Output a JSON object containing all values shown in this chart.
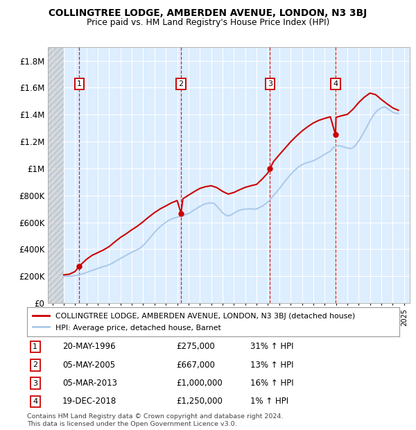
{
  "title": "COLLINGTREE LODGE, AMBERDEN AVENUE, LONDON, N3 3BJ",
  "subtitle": "Price paid vs. HM Land Registry's House Price Index (HPI)",
  "ylabel_ticks": [
    "£0",
    "£200K",
    "£400K",
    "£600K",
    "£800K",
    "£1M",
    "£1.2M",
    "£1.4M",
    "£1.6M",
    "£1.8M"
  ],
  "ytick_values": [
    0,
    200000,
    400000,
    600000,
    800000,
    1000000,
    1200000,
    1400000,
    1600000,
    1800000
  ],
  "xlim_start": 1993.6,
  "xlim_end": 2025.5,
  "ylim": [
    0,
    1900000
  ],
  "hpi_line_color": "#aac8e8",
  "price_line_color": "#cc0000",
  "purchases": [
    {
      "num": 1,
      "year": 1996.38,
      "price": 275000,
      "date": "20-MAY-1996",
      "pct": "31%",
      "dir": "↑"
    },
    {
      "num": 2,
      "year": 2005.34,
      "price": 667000,
      "date": "05-MAY-2005",
      "pct": "13%",
      "dir": "↑"
    },
    {
      "num": 3,
      "year": 2013.17,
      "price": 1000000,
      "date": "05-MAR-2013",
      "pct": "16%",
      "dir": "↑"
    },
    {
      "num": 4,
      "year": 2018.96,
      "price": 1250000,
      "date": "19-DEC-2018",
      "pct": "1%",
      "dir": "↑"
    }
  ],
  "legend_entries": [
    "COLLINGTREE LODGE, AMBERDEN AVENUE, LONDON, N3 3BJ (detached house)",
    "HPI: Average price, detached house, Barnet"
  ],
  "footnote": "Contains HM Land Registry data © Crown copyright and database right 2024.\nThis data is licensed under the Open Government Licence v3.0.",
  "hatch_end_year": 1995.0,
  "chart_bg_color": "#ddeeff",
  "grid_color": "#ffffff",
  "box_color_face": "#ffffff",
  "box_color_edge": "#cc0000",
  "vline_color": "#cc0000",
  "dot_color": "#cc0000",
  "hpi_data_x": [
    1995.0,
    1995.25,
    1995.5,
    1995.75,
    1996.0,
    1996.25,
    1996.5,
    1996.75,
    1997.0,
    1997.25,
    1997.5,
    1997.75,
    1998.0,
    1998.25,
    1998.5,
    1998.75,
    1999.0,
    1999.25,
    1999.5,
    1999.75,
    2000.0,
    2000.25,
    2000.5,
    2000.75,
    2001.0,
    2001.25,
    2001.5,
    2001.75,
    2002.0,
    2002.25,
    2002.5,
    2002.75,
    2003.0,
    2003.25,
    2003.5,
    2003.75,
    2004.0,
    2004.25,
    2004.5,
    2004.75,
    2005.0,
    2005.25,
    2005.5,
    2005.75,
    2006.0,
    2006.25,
    2006.5,
    2006.75,
    2007.0,
    2007.25,
    2007.5,
    2007.75,
    2008.0,
    2008.25,
    2008.5,
    2008.75,
    2009.0,
    2009.25,
    2009.5,
    2009.75,
    2010.0,
    2010.25,
    2010.5,
    2010.75,
    2011.0,
    2011.25,
    2011.5,
    2011.75,
    2012.0,
    2012.25,
    2012.5,
    2012.75,
    2013.0,
    2013.25,
    2013.5,
    2013.75,
    2014.0,
    2014.25,
    2014.5,
    2014.75,
    2015.0,
    2015.25,
    2015.5,
    2015.75,
    2016.0,
    2016.25,
    2016.5,
    2016.75,
    2017.0,
    2017.25,
    2017.5,
    2017.75,
    2018.0,
    2018.25,
    2018.5,
    2018.75,
    2019.0,
    2019.25,
    2019.5,
    2019.75,
    2020.0,
    2020.25,
    2020.5,
    2020.75,
    2021.0,
    2021.25,
    2021.5,
    2021.75,
    2022.0,
    2022.25,
    2022.5,
    2022.75,
    2023.0,
    2023.25,
    2023.5,
    2023.75,
    2024.0,
    2024.25,
    2024.5
  ],
  "hpi_data_y": [
    199000,
    200000,
    201000,
    202000,
    205000,
    208000,
    215000,
    220000,
    228000,
    235000,
    243000,
    250000,
    258000,
    265000,
    272000,
    278000,
    285000,
    295000,
    308000,
    320000,
    332000,
    343000,
    355000,
    367000,
    378000,
    388000,
    398000,
    410000,
    428000,
    450000,
    475000,
    500000,
    525000,
    548000,
    568000,
    585000,
    600000,
    615000,
    625000,
    632000,
    638000,
    645000,
    652000,
    658000,
    665000,
    678000,
    692000,
    705000,
    718000,
    730000,
    738000,
    742000,
    745000,
    740000,
    720000,
    695000,
    672000,
    655000,
    648000,
    655000,
    668000,
    680000,
    690000,
    695000,
    698000,
    700000,
    700000,
    698000,
    700000,
    710000,
    720000,
    735000,
    752000,
    775000,
    800000,
    825000,
    850000,
    878000,
    905000,
    930000,
    955000,
    978000,
    998000,
    1015000,
    1028000,
    1038000,
    1045000,
    1050000,
    1058000,
    1068000,
    1080000,
    1092000,
    1105000,
    1118000,
    1128000,
    1155000,
    1165000,
    1170000,
    1165000,
    1158000,
    1152000,
    1148000,
    1155000,
    1175000,
    1205000,
    1238000,
    1275000,
    1315000,
    1355000,
    1390000,
    1418000,
    1438000,
    1450000,
    1458000,
    1448000,
    1432000,
    1418000,
    1410000,
    1408000
  ],
  "price_data_x": [
    1995.0,
    1995.5,
    1996.0,
    1996.38,
    1996.5,
    1997.0,
    1997.5,
    1998.0,
    1998.5,
    1999.0,
    1999.5,
    2000.0,
    2000.5,
    2001.0,
    2001.5,
    2002.0,
    2002.5,
    2003.0,
    2003.5,
    2004.0,
    2004.5,
    2005.0,
    2005.34,
    2005.5,
    2006.0,
    2006.5,
    2007.0,
    2007.5,
    2008.0,
    2008.5,
    2009.0,
    2009.5,
    2010.0,
    2010.5,
    2011.0,
    2011.5,
    2012.0,
    2012.5,
    2013.0,
    2013.17,
    2013.5,
    2014.0,
    2014.5,
    2015.0,
    2015.5,
    2016.0,
    2016.5,
    2017.0,
    2017.5,
    2018.0,
    2018.5,
    2018.96,
    2019.0,
    2019.5,
    2020.0,
    2020.5,
    2021.0,
    2021.5,
    2022.0,
    2022.5,
    2023.0,
    2023.5,
    2024.0,
    2024.5
  ],
  "price_data_y": [
    210000,
    215000,
    235000,
    275000,
    285000,
    325000,
    355000,
    375000,
    395000,
    420000,
    455000,
    488000,
    515000,
    545000,
    572000,
    605000,
    640000,
    672000,
    700000,
    722000,
    745000,
    762000,
    667000,
    775000,
    802000,
    828000,
    852000,
    865000,
    872000,
    858000,
    830000,
    810000,
    822000,
    842000,
    860000,
    872000,
    882000,
    922000,
    968000,
    1000000,
    1052000,
    1102000,
    1150000,
    1198000,
    1240000,
    1278000,
    1310000,
    1338000,
    1358000,
    1372000,
    1384000,
    1250000,
    1380000,
    1392000,
    1402000,
    1440000,
    1490000,
    1530000,
    1560000,
    1548000,
    1512000,
    1480000,
    1450000,
    1432000
  ]
}
